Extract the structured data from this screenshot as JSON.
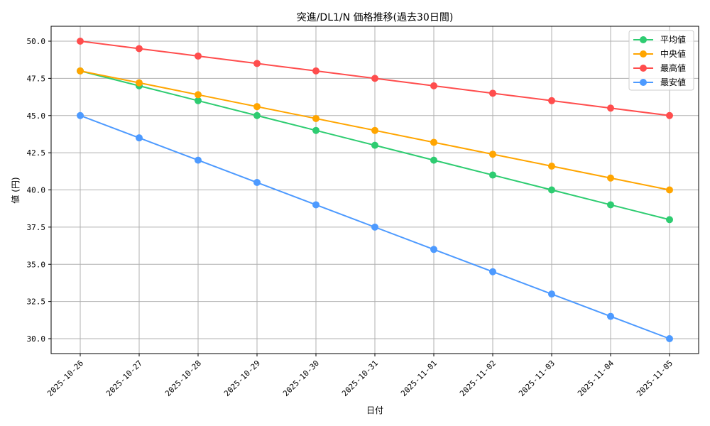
{
  "chart_data": {
    "type": "line",
    "title": "突進/DL1/N 価格推移(過去30日間)",
    "xlabel": "日付",
    "ylabel": "値 (円)",
    "x": [
      "2025-10-26",
      "2025-10-27",
      "2025-10-28",
      "2025-10-29",
      "2025-10-30",
      "2025-10-31",
      "2025-11-01",
      "2025-11-02",
      "2025-11-03",
      "2025-11-04",
      "2025-11-05"
    ],
    "yticks": [
      "30.0",
      "32.5",
      "35.0",
      "37.5",
      "40.0",
      "42.5",
      "45.0",
      "47.5",
      "50.0"
    ],
    "ylim": [
      29.0,
      51.0
    ],
    "grid": true,
    "legend_position": "upper right",
    "series": [
      {
        "name": "平均値",
        "color": "#2ecc71",
        "values": [
          48,
          47,
          46,
          45,
          44,
          43,
          42,
          41,
          40,
          39,
          38
        ]
      },
      {
        "name": "中央値",
        "color": "#ffa500",
        "values": [
          48,
          47.2,
          46.4,
          45.6,
          44.8,
          44,
          43.2,
          42.4,
          41.6,
          40.8,
          40
        ]
      },
      {
        "name": "最高値",
        "color": "#ff4d4d",
        "values": [
          50,
          49.5,
          49,
          48.5,
          48,
          47.5,
          47,
          46.5,
          46,
          45.5,
          45
        ]
      },
      {
        "name": "最安値",
        "color": "#4d9aff",
        "values": [
          45,
          43.5,
          42,
          40.5,
          39,
          37.5,
          36,
          34.5,
          33,
          31.5,
          30
        ]
      }
    ]
  }
}
